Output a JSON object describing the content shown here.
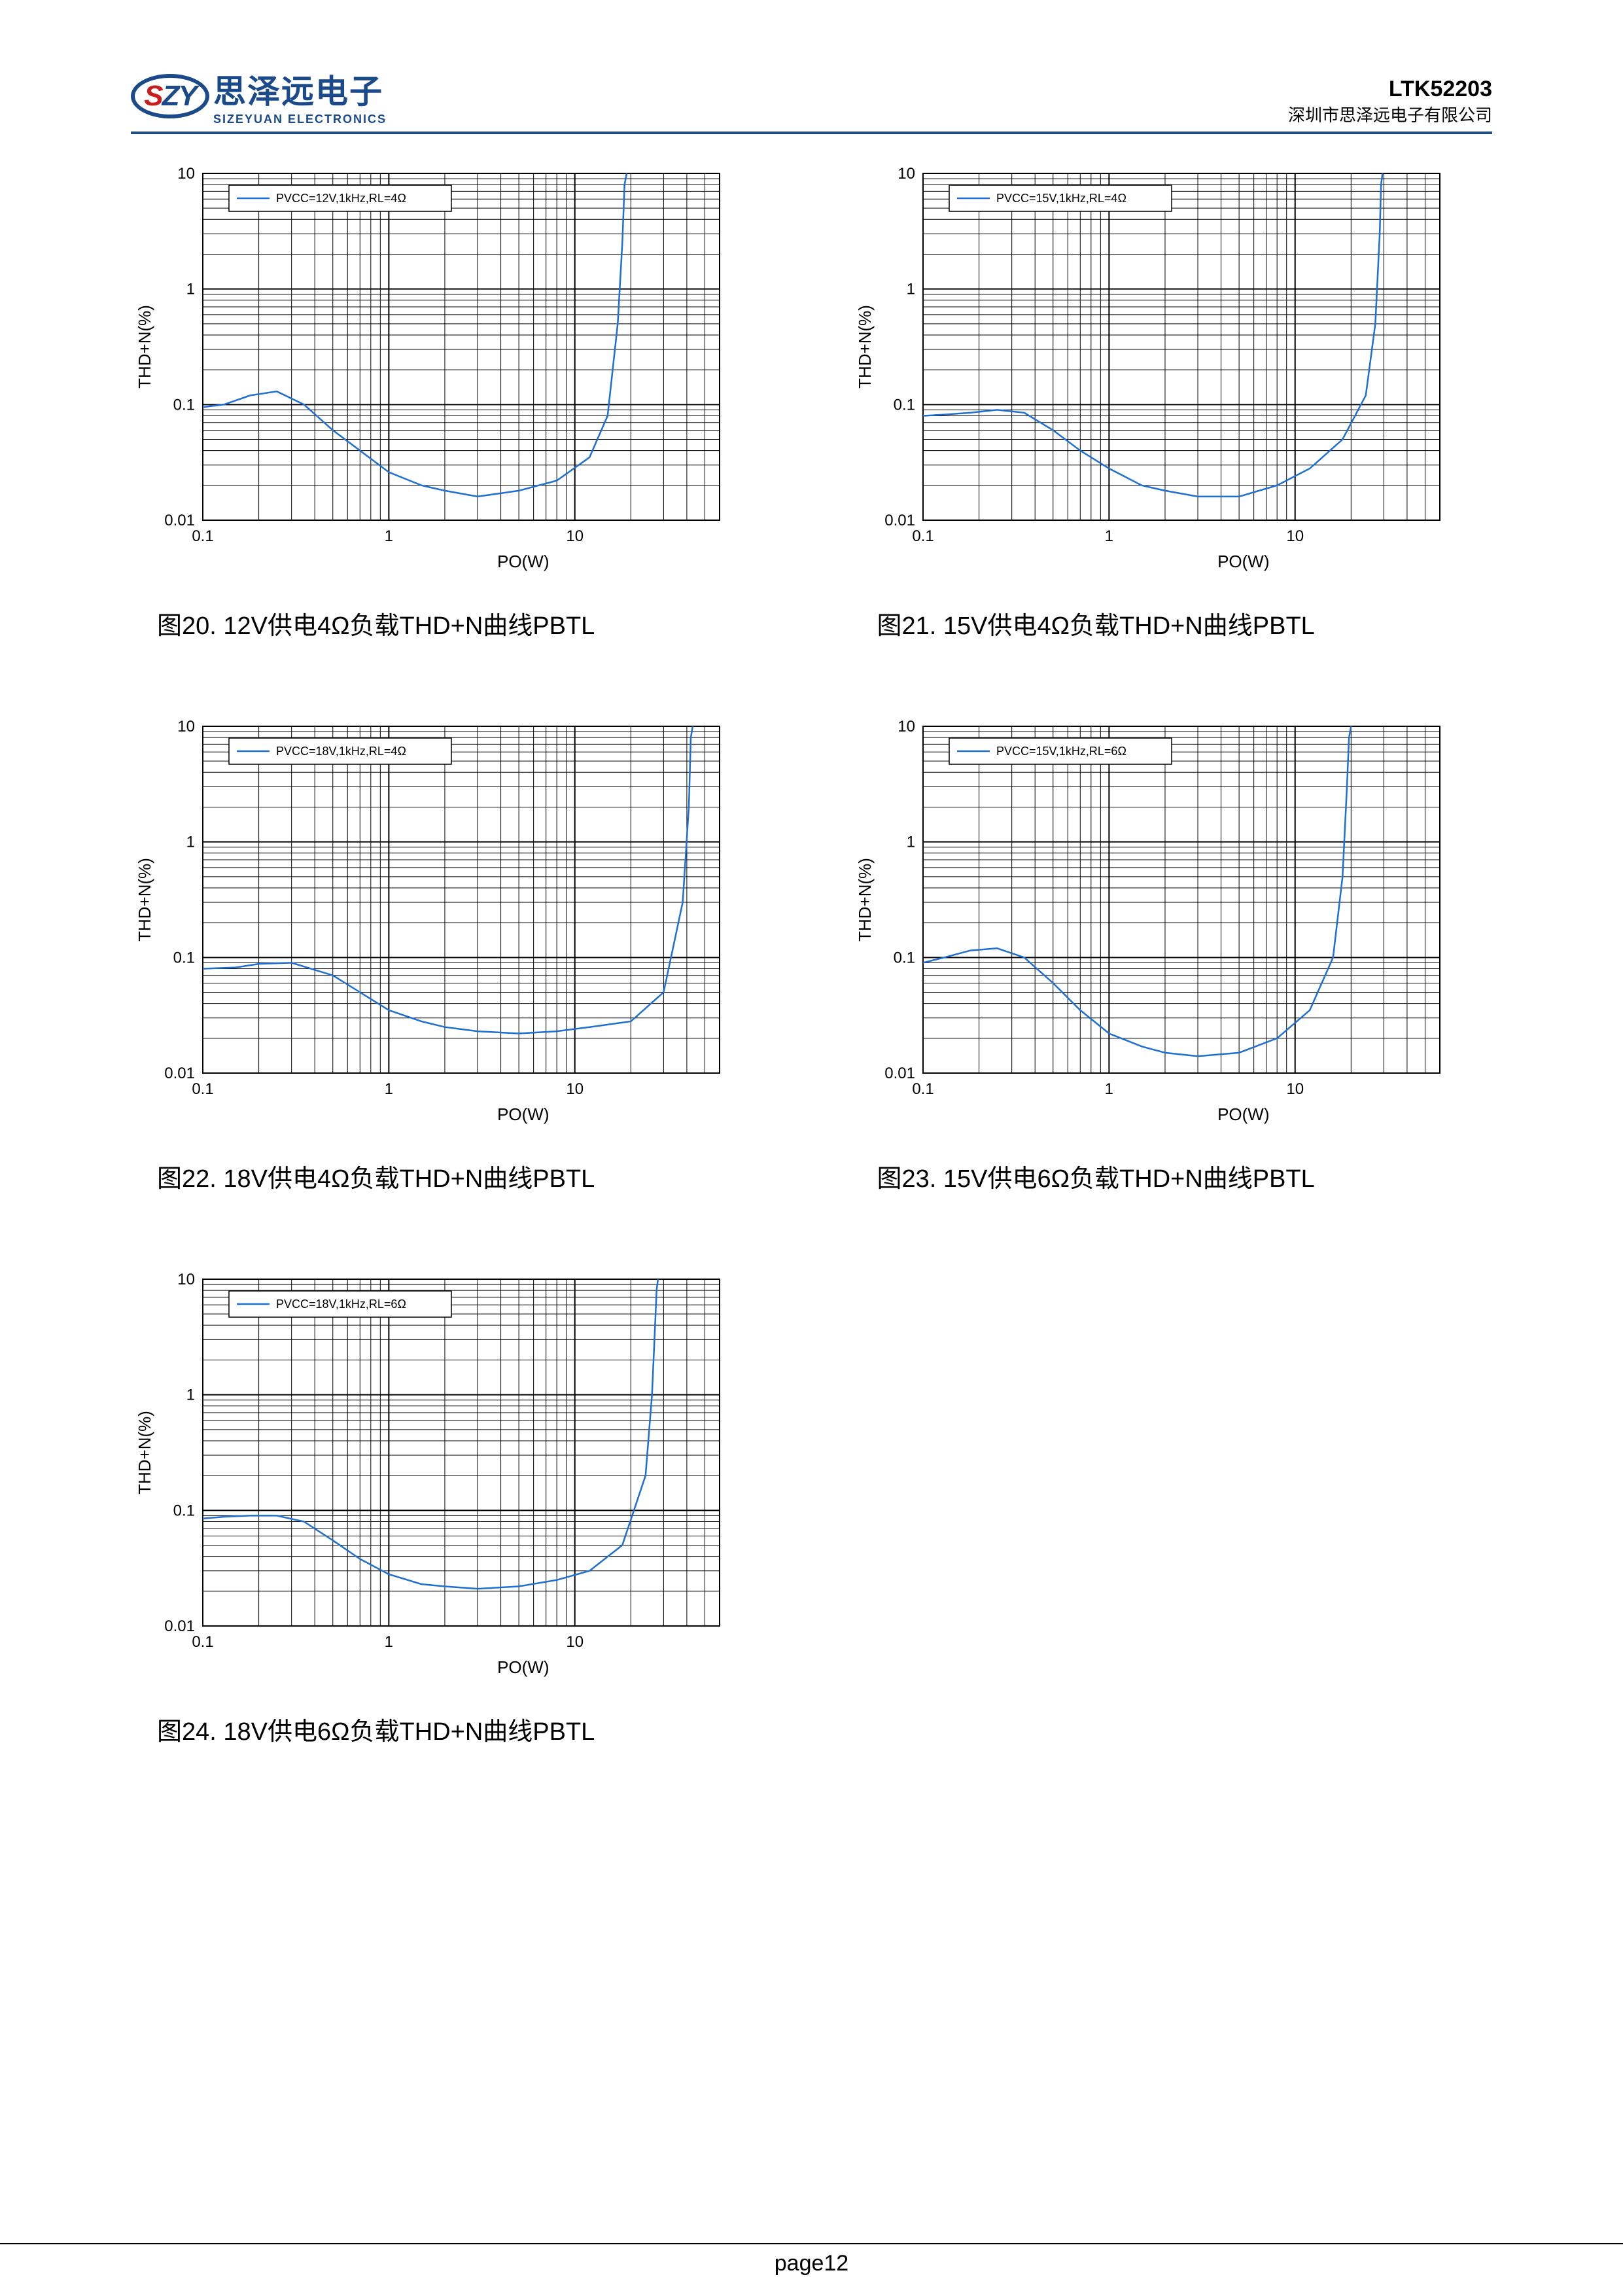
{
  "header": {
    "logo_s": "S",
    "logo_zy": "ZY",
    "logo_cn": "思泽远电子",
    "logo_en": "SIZEYUAN  ELECTRONICS",
    "part_no": "LTK52203",
    "company": "深圳市思泽远电子有限公司"
  },
  "footer": {
    "page": "page12"
  },
  "chart_defaults": {
    "xlabel": "PO(W)",
    "ylabel": "THD+N(%)",
    "xlim": [
      0.1,
      60
    ],
    "ylim": [
      0.01,
      10
    ],
    "xticks": [
      0.1,
      1,
      10
    ],
    "yticks": [
      0.01,
      0.1,
      1,
      10
    ],
    "xtick_labels": [
      "0.1",
      "1",
      "10"
    ],
    "ytick_labels": [
      "0.01",
      "0.1",
      "1",
      "10"
    ],
    "grid_color": "#000000",
    "line_color": "#1f6fd0",
    "line_width": 2.5,
    "background": "#ffffff",
    "axis_fontsize": 24,
    "label_fontsize": 26,
    "legend_fontsize": 18,
    "legend_pos": "top-left"
  },
  "charts": [
    {
      "id": "fig20",
      "caption": "图20.   12V供电4Ω负载THD+N曲线PBTL",
      "legend": "PVCC=12V,1kHz,RL=4Ω",
      "series": [
        {
          "x": [
            0.1,
            0.13,
            0.18,
            0.25,
            0.35,
            0.5,
            0.7,
            1.0,
            1.5,
            2.0,
            3.0,
            5.0,
            8.0,
            12,
            15,
            17,
            18,
            18.5,
            19
          ],
          "y": [
            0.095,
            0.1,
            0.12,
            0.13,
            0.1,
            0.06,
            0.04,
            0.026,
            0.02,
            0.018,
            0.016,
            0.018,
            0.022,
            0.035,
            0.08,
            0.5,
            2.5,
            8,
            10
          ]
        }
      ]
    },
    {
      "id": "fig21",
      "caption": "图21.   15V供电4Ω负载THD+N曲线PBTL",
      "legend": "PVCC=15V,1kHz,RL=4Ω",
      "series": [
        {
          "x": [
            0.1,
            0.13,
            0.18,
            0.25,
            0.35,
            0.5,
            0.7,
            1.0,
            1.5,
            2.0,
            3.0,
            5.0,
            8.0,
            12,
            18,
            24,
            27,
            28.5,
            29,
            29.5
          ],
          "y": [
            0.08,
            0.082,
            0.085,
            0.09,
            0.085,
            0.06,
            0.04,
            0.028,
            0.02,
            0.018,
            0.016,
            0.016,
            0.02,
            0.028,
            0.05,
            0.12,
            0.5,
            3,
            8,
            10
          ]
        }
      ]
    },
    {
      "id": "fig22",
      "caption": "图22.   18V供电4Ω负载THD+N曲线PBTL",
      "legend": "PVCC=18V,1kHz,RL=4Ω",
      "series": [
        {
          "x": [
            0.1,
            0.15,
            0.2,
            0.3,
            0.5,
            0.7,
            1.0,
            1.5,
            2.0,
            3.0,
            5.0,
            8.0,
            12,
            20,
            30,
            38,
            41,
            42,
            43
          ],
          "y": [
            0.08,
            0.082,
            0.088,
            0.09,
            0.07,
            0.05,
            0.035,
            0.028,
            0.025,
            0.023,
            0.022,
            0.023,
            0.025,
            0.028,
            0.05,
            0.3,
            2,
            8,
            10
          ]
        }
      ]
    },
    {
      "id": "fig23",
      "caption": "图23.   15V供电6Ω负载THD+N曲线PBTL",
      "legend": "PVCC=15V,1kHz,RL=6Ω",
      "series": [
        {
          "x": [
            0.1,
            0.13,
            0.18,
            0.25,
            0.35,
            0.5,
            0.7,
            1.0,
            1.5,
            2.0,
            3.0,
            5.0,
            8.0,
            12,
            16,
            18,
            19,
            19.5,
            20
          ],
          "y": [
            0.09,
            0.1,
            0.115,
            0.12,
            0.1,
            0.06,
            0.035,
            0.022,
            0.017,
            0.015,
            0.014,
            0.015,
            0.02,
            0.035,
            0.1,
            0.5,
            3,
            8,
            10
          ]
        }
      ]
    },
    {
      "id": "fig24",
      "caption": "图24.   18V供电6Ω负载THD+N曲线PBTL",
      "legend": "PVCC=18V,1kHz,RL=6Ω",
      "series": [
        {
          "x": [
            0.1,
            0.13,
            0.18,
            0.25,
            0.35,
            0.5,
            0.7,
            1.0,
            1.5,
            2.0,
            3.0,
            5.0,
            8.0,
            12,
            18,
            24,
            26,
            27,
            27.5,
            28
          ],
          "y": [
            0.085,
            0.088,
            0.09,
            0.09,
            0.08,
            0.055,
            0.038,
            0.028,
            0.023,
            0.022,
            0.021,
            0.022,
            0.025,
            0.03,
            0.05,
            0.2,
            1,
            4,
            8,
            10
          ]
        }
      ]
    }
  ]
}
